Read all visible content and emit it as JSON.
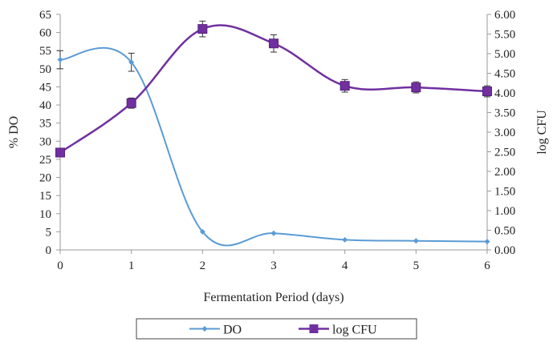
{
  "chart_data": {
    "type": "line",
    "title": "",
    "xlabel": "Fermentation Period (days)",
    "ylabel_left": "% DO",
    "ylabel_right": "log CFU",
    "x": [
      0,
      1,
      2,
      3,
      4,
      5,
      6
    ],
    "x_ticks": [
      "0",
      "1",
      "2",
      "3",
      "4",
      "5",
      "6"
    ],
    "xlim": [
      0,
      6
    ],
    "ylim_left": [
      0,
      65
    ],
    "ylim_right": [
      0,
      6
    ],
    "y_left_ticks": [
      "0",
      "5",
      "10",
      "15",
      "20",
      "25",
      "30",
      "35",
      "40",
      "45",
      "50",
      "55",
      "60",
      "65"
    ],
    "y_right_ticks": [
      "0.00",
      "0.50",
      "1.00",
      "1.50",
      "2.00",
      "2.50",
      "3.00",
      "3.50",
      "4.00",
      "4.50",
      "5.00",
      "5.50",
      "6.00"
    ],
    "grid": false,
    "legend_position": "bottom",
    "series": [
      {
        "name": "DO",
        "axis": "left",
        "color": "#5b9bd5",
        "marker": "diamond",
        "smooth": true,
        "values": [
          52.5,
          51.8,
          5.0,
          4.6,
          2.8,
          2.5,
          2.3
        ],
        "error": [
          2.5,
          2.5,
          null,
          null,
          null,
          null,
          null
        ]
      },
      {
        "name": "log CFU",
        "axis": "right",
        "color": "#7030a0",
        "marker": "square",
        "smooth": true,
        "values": [
          2.48,
          3.74,
          5.63,
          5.26,
          4.18,
          4.14,
          4.04
        ],
        "error": [
          0.07,
          0.13,
          0.2,
          0.22,
          0.16,
          0.14,
          0.14
        ]
      }
    ]
  }
}
